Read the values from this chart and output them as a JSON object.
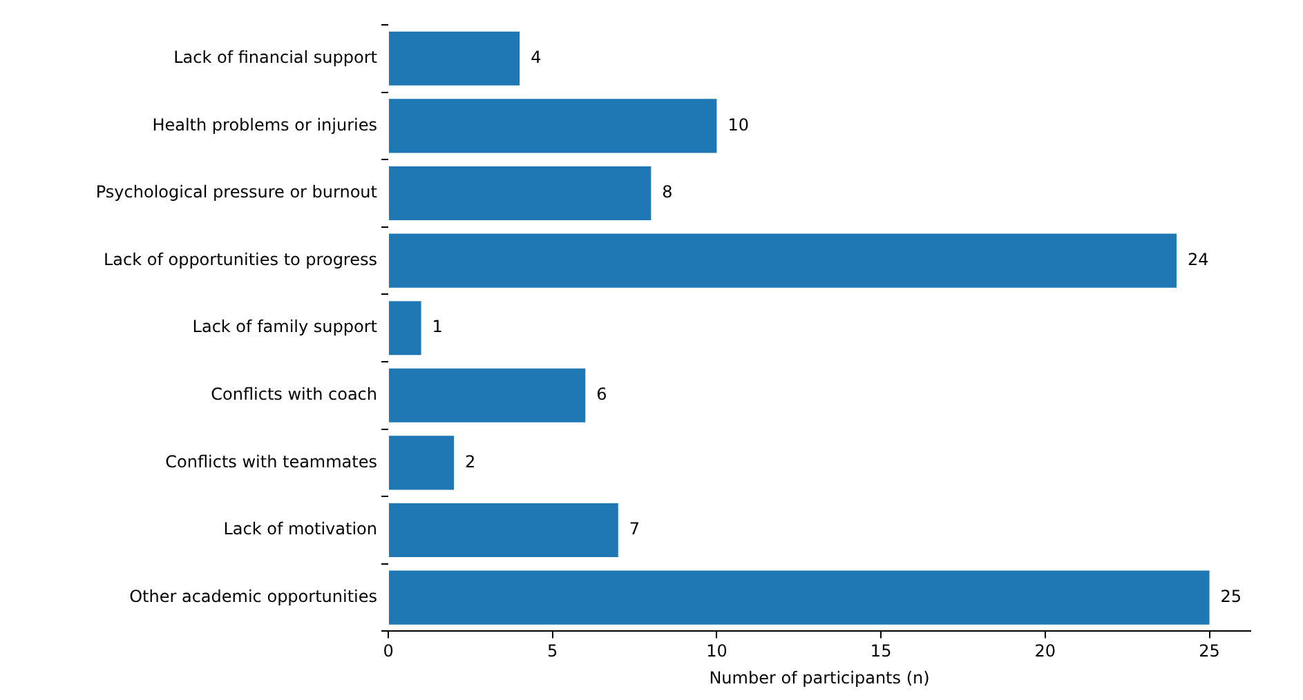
{
  "chart_data": {
    "type": "bar",
    "orientation": "horizontal",
    "xlabel": "Number of participants (n)",
    "categories": [
      "Lack of financial support",
      "Health problems or injuries",
      "Psychological pressure or burnout",
      "Lack of opportunities to progress",
      "Lack of family support",
      "Conflicts with coach",
      "Conflicts with teammates",
      "Lack of motivation",
      "Other academic opportunities"
    ],
    "values": [
      4,
      10,
      8,
      24,
      1,
      6,
      2,
      7,
      25
    ],
    "color": "#1f77b4",
    "xlim": [
      0,
      26.25
    ],
    "xticks": [
      0,
      5,
      10,
      15,
      20,
      25
    ],
    "data_labels": true,
    "grid": false,
    "legend": false
  }
}
